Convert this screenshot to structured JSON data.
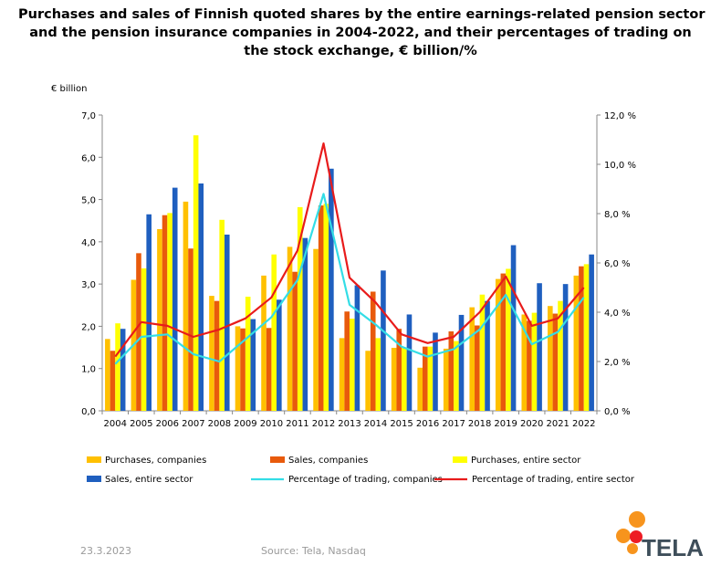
{
  "title_lines": [
    "Purchases and sales of Finnish quoted shares by the entire earnings-related pension sector",
    "and the pension insurance companies in 2004-2022, and their percentages of trading on",
    "the stock exchange, € billion/%"
  ],
  "footer": {
    "date": "23.3.2023",
    "source": "Source: Tela, Nasdaq"
  },
  "logo_text": "TELA",
  "colors": {
    "purchases_companies": "#FFC000",
    "sales_companies": "#E85A0C",
    "purchases_entire": "#FFFF00",
    "sales_entire": "#1F5FBF",
    "pct_companies": "#33DDE6",
    "pct_entire": "#E81B1B",
    "logo_orange": "#F7941D",
    "logo_red": "#ED1C24",
    "logo_text": "#3E4E5A"
  },
  "chart_data": {
    "type": "bar",
    "ylabel": "€ billion",
    "categories": [
      "2004",
      "2005",
      "2006",
      "2007",
      "2008",
      "2009",
      "2010",
      "2011",
      "2012",
      "2013",
      "2014",
      "2015",
      "2016",
      "2017",
      "2018",
      "2019",
      "2020",
      "2021",
      "2022"
    ],
    "ylim": [
      0,
      7
    ],
    "yticks": [
      "0,0",
      "1,0",
      "2,0",
      "3,0",
      "4,0",
      "5,0",
      "6,0",
      "7,0"
    ],
    "y2lim": [
      0,
      12
    ],
    "y2ticks": [
      "0,0 %",
      "2,0 %",
      "4,0 %",
      "6,0 %",
      "8,0 %",
      "10,0 %",
      "12,0 %"
    ],
    "series": [
      {
        "name": "Purchases, companies",
        "kind": "bar",
        "values": [
          1.7,
          3.1,
          4.3,
          4.95,
          2.72,
          2.0,
          3.2,
          3.88,
          3.83,
          1.72,
          1.42,
          1.49,
          1.02,
          1.47,
          2.45,
          3.12,
          2.28,
          2.48,
          3.2
        ]
      },
      {
        "name": "Sales, companies",
        "kind": "bar",
        "values": [
          1.42,
          3.73,
          4.63,
          3.84,
          2.6,
          1.95,
          1.96,
          3.29,
          4.86,
          2.35,
          2.82,
          1.94,
          1.52,
          1.88,
          2.02,
          3.25,
          2.13,
          2.3,
          3.42
        ]
      },
      {
        "name": "Purchases, entire sector",
        "kind": "bar",
        "values": [
          2.07,
          3.37,
          4.68,
          6.52,
          4.52,
          2.7,
          3.7,
          4.82,
          4.9,
          2.18,
          1.72,
          1.5,
          1.52,
          1.65,
          2.75,
          3.36,
          2.32,
          2.6,
          3.47
        ]
      },
      {
        "name": "Sales, entire sector",
        "kind": "bar",
        "values": [
          1.94,
          4.65,
          5.28,
          5.38,
          4.17,
          2.17,
          2.63,
          4.09,
          5.73,
          2.97,
          3.32,
          2.28,
          1.85,
          2.27,
          2.6,
          3.92,
          3.02,
          3.0,
          3.7
        ]
      },
      {
        "name": "Percentage of trading, companies",
        "kind": "line",
        "axis": "right",
        "values": [
          1.9,
          3.0,
          3.1,
          2.3,
          2.0,
          2.9,
          3.8,
          5.3,
          8.8,
          4.3,
          3.5,
          2.6,
          2.2,
          2.5,
          3.3,
          4.7,
          2.7,
          3.2,
          4.6
        ]
      },
      {
        "name": "Percentage of trading, entire sector",
        "kind": "line",
        "axis": "right",
        "values": [
          2.2,
          3.6,
          3.45,
          3.0,
          3.3,
          3.75,
          4.6,
          6.5,
          10.85,
          5.4,
          4.4,
          3.1,
          2.75,
          3.0,
          4.0,
          5.45,
          3.45,
          3.75,
          5.0
        ]
      }
    ],
    "legend_position": "bottom",
    "grid": false
  }
}
